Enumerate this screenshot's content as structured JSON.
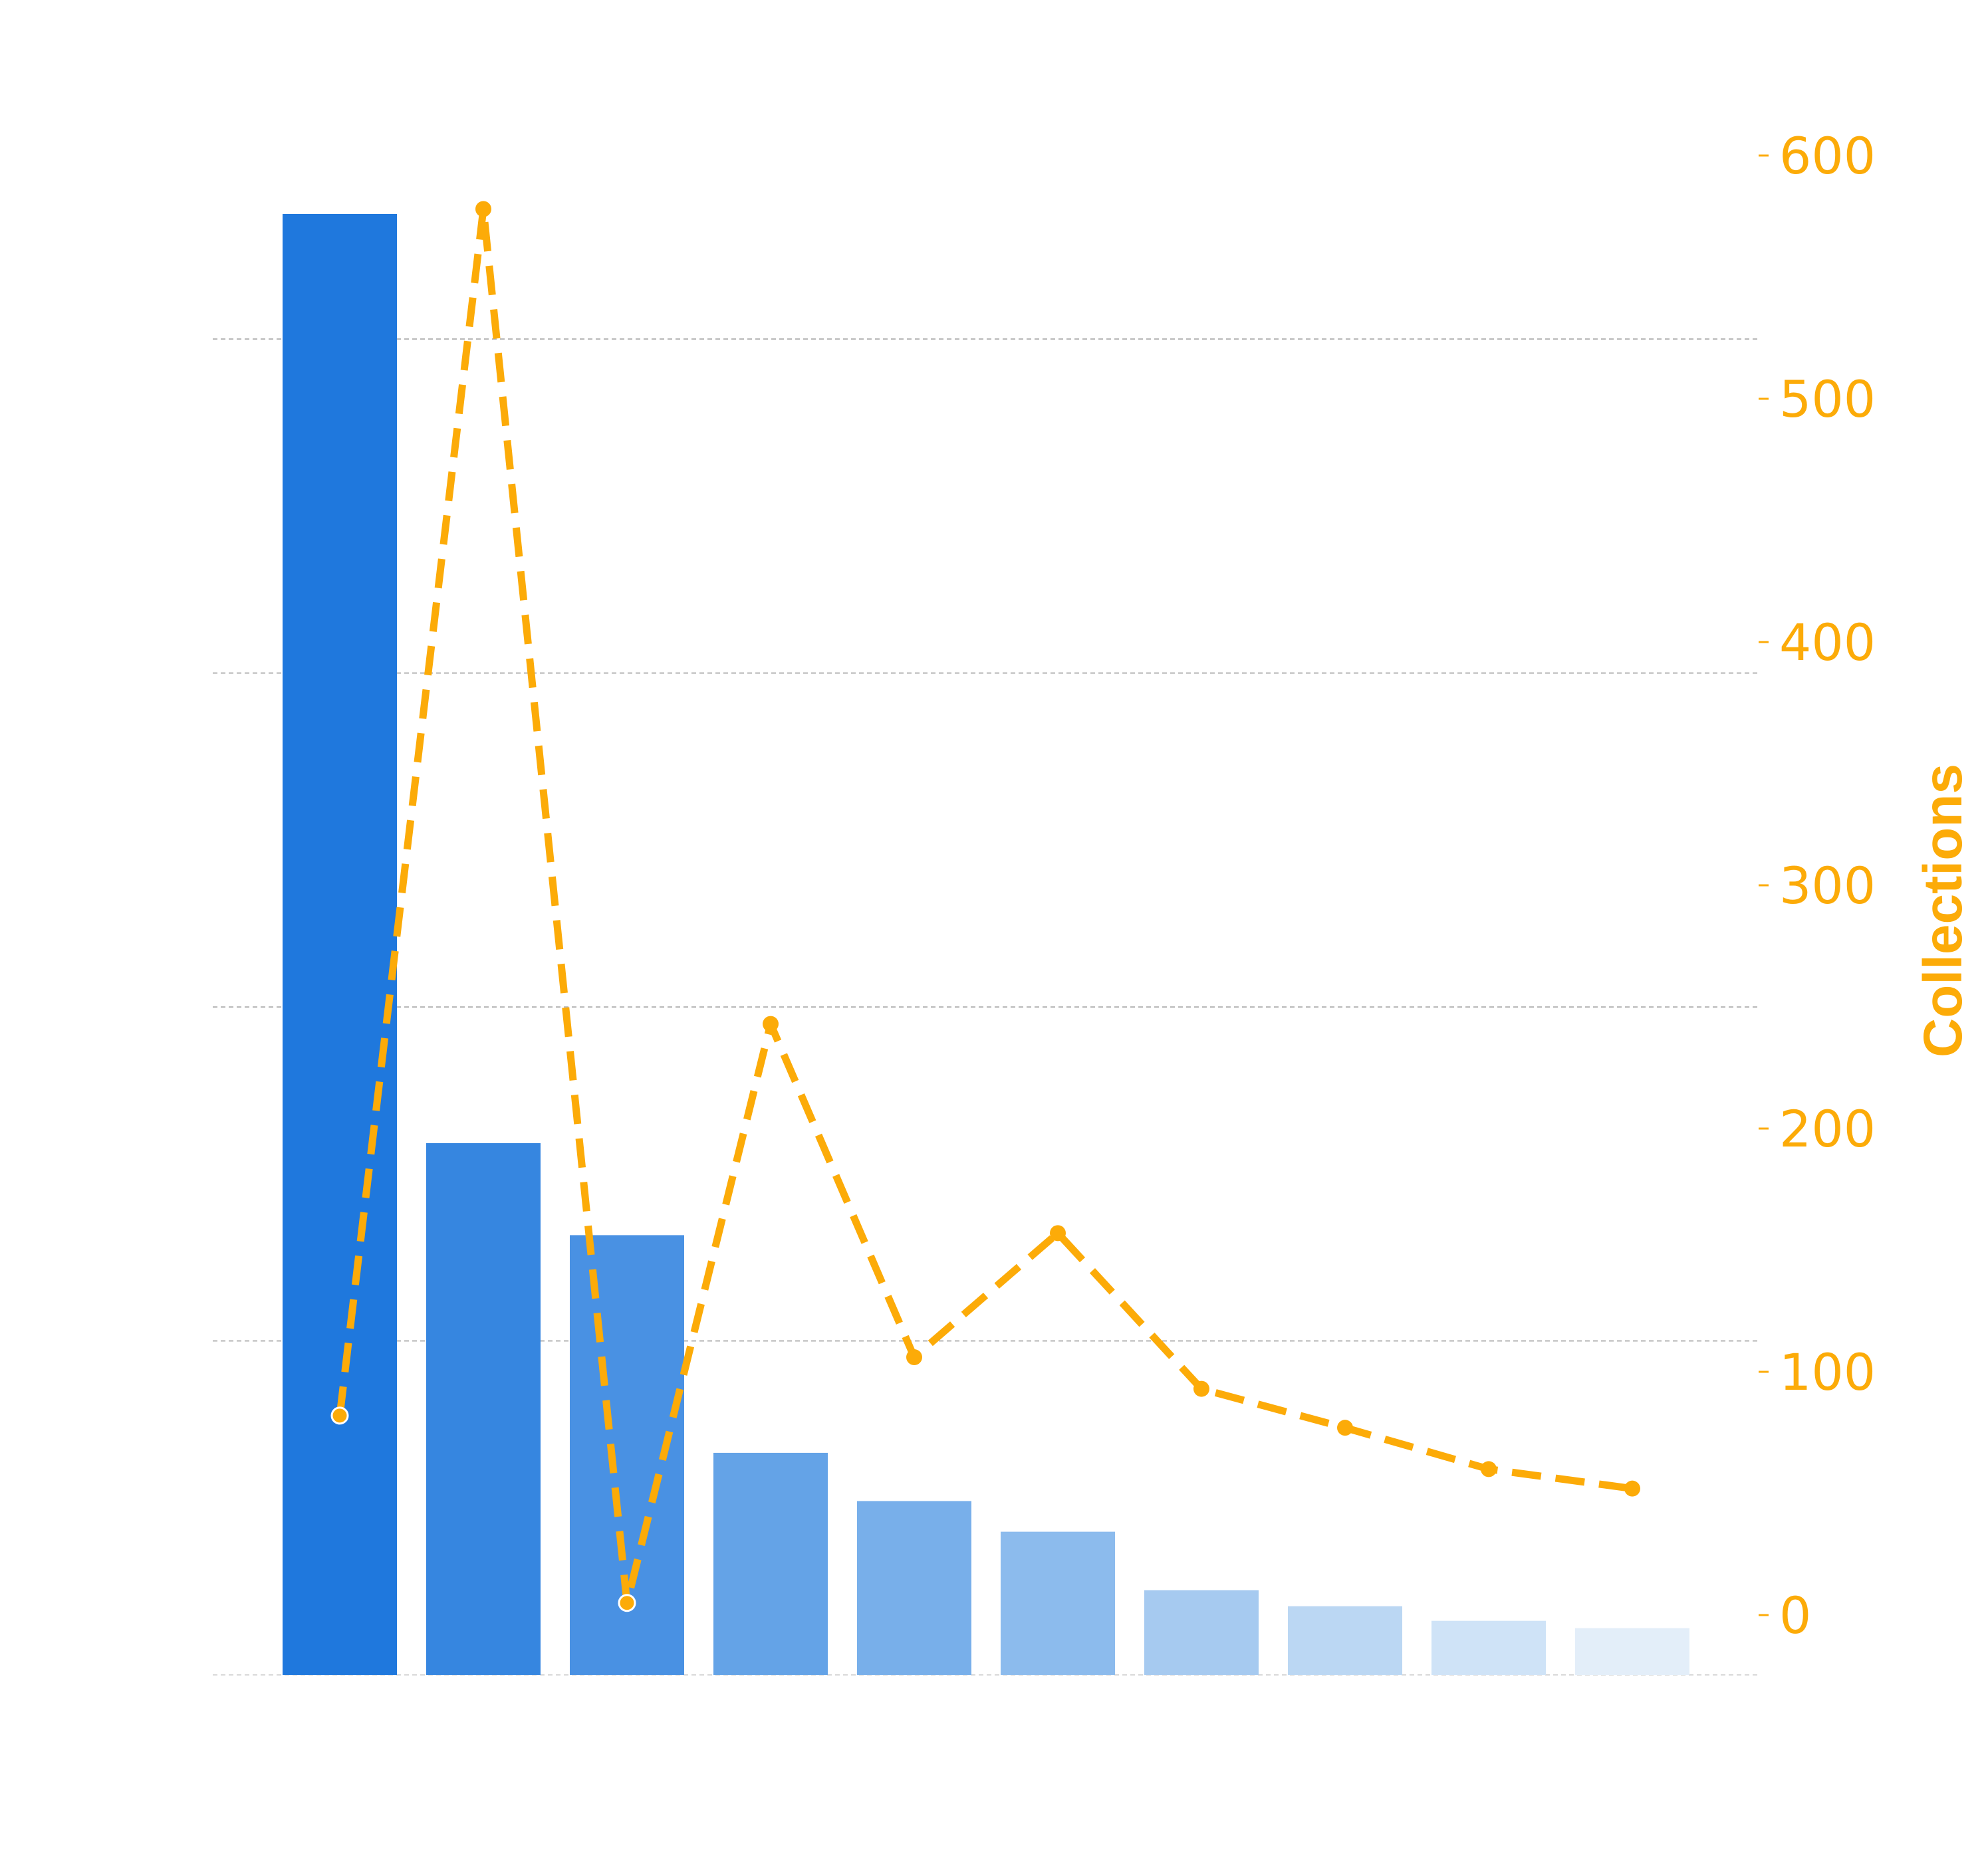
{
  "chart_data": {
    "type": "bar",
    "categories": [
      "",
      "",
      "",
      "",
      "",
      "",
      "",
      "",
      "",
      ""
    ],
    "series": [
      {
        "type": "bar",
        "axis": "left",
        "values": [
          1000,
          364,
          301,
          152,
          119,
          98,
          58,
          47,
          37,
          32
        ],
        "colors": [
          "#1f78dd",
          "#3686e0",
          "#4991e3",
          "#64a3e7",
          "#78afea",
          "#8cbbed",
          "#a6caf0",
          "#bbd7f3",
          "#cfe3f7",
          "#e3eef9"
        ]
      },
      {
        "type": "line",
        "axis": "right",
        "style": "dashed",
        "color": "#fcab08",
        "values": [
          82,
          578,
          5,
          243,
          106,
          157,
          93,
          77,
          60,
          52
        ]
      }
    ],
    "left_axis": {
      "ylim": [
        0,
        1000
      ],
      "tick_labels_visible": false,
      "grid_values": [
        0,
        228.6,
        457.2,
        685.8,
        914.4
      ]
    },
    "right_axis": {
      "ylabel": "Collections",
      "ylim": [
        -24,
        610
      ],
      "ticks": [
        0,
        100,
        200,
        300,
        400,
        500,
        600
      ],
      "tick_labels": [
        "0",
        "100",
        "200",
        "300",
        "400",
        "500",
        "600"
      ],
      "color": "#fcab08"
    },
    "grid": "horizontal-dashed",
    "legend": "none"
  }
}
